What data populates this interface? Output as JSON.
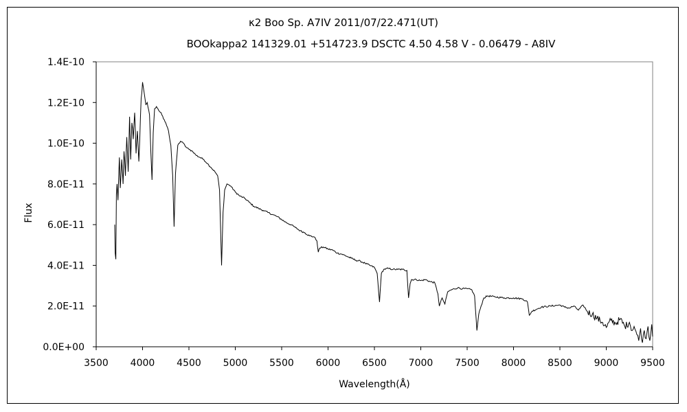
{
  "chart_data": {
    "type": "line",
    "title": "κ2 Boo    Sp. A7IV    2011/07/22.471(UT)",
    "subtitle": "BOOkappa2 141329.01 +514723.9 DSCTC 4.50 4.58 V - 0.06479 - A8IV",
    "xlabel": "Wavelength(Å)",
    "ylabel": "Flux",
    "xlim": [
      3500,
      9500
    ],
    "ylim": [
      0,
      1.4e-10
    ],
    "x_ticks": [
      3500,
      4000,
      4500,
      5000,
      5500,
      6000,
      6500,
      7000,
      7500,
      8000,
      8500,
      9000,
      9500
    ],
    "x_tick_labels": [
      "3500",
      "4000",
      "4500",
      "5000",
      "5500",
      "6000",
      "6500",
      "7000",
      "7500",
      "8000",
      "8500",
      "9000",
      "9500"
    ],
    "y_ticks": [
      0,
      2e-11,
      4e-11,
      6e-11,
      8e-11,
      1e-10,
      1.2e-10,
      1.4e-10
    ],
    "y_tick_labels": [
      "0.0E+00",
      "2.0E-11",
      "4.0E-11",
      "6.0E-11",
      "8.0E-11",
      "1.0E-10",
      "1.2E-10",
      "1.4E-10"
    ],
    "grid": false,
    "legend": "none",
    "series": [
      {
        "color": "#000000",
        "points": [
          [
            3700,
            6e-11
          ],
          [
            3705,
            4.6e-11
          ],
          [
            3712,
            4.3e-11
          ],
          [
            3718,
            7.5e-11
          ],
          [
            3725,
            8e-11
          ],
          [
            3735,
            7.2e-11
          ],
          [
            3750,
            9.3e-11
          ],
          [
            3760,
            7.8e-11
          ],
          [
            3775,
            9.2e-11
          ],
          [
            3790,
            8e-11
          ],
          [
            3800,
            9.6e-11
          ],
          [
            3815,
            8.4e-11
          ],
          [
            3830,
            1.03e-10
          ],
          [
            3845,
            8.6e-11
          ],
          [
            3860,
            1.13e-10
          ],
          [
            3872,
            9.2e-11
          ],
          [
            3885,
            1.1e-10
          ],
          [
            3900,
            1.02e-10
          ],
          [
            3915,
            1.15e-10
          ],
          [
            3930,
            9.5e-11
          ],
          [
            3945,
            1.06e-10
          ],
          [
            3960,
            9.1e-11
          ],
          [
            3970,
            1.02e-10
          ],
          [
            3985,
            1.22e-10
          ],
          [
            4000,
            1.3e-10
          ],
          [
            4010,
            1.27e-10
          ],
          [
            4020,
            1.24e-10
          ],
          [
            4035,
            1.19e-10
          ],
          [
            4050,
            1.2e-10
          ],
          [
            4075,
            1.14e-10
          ],
          [
            4090,
            9.5e-11
          ],
          [
            4102,
            8.2e-11
          ],
          [
            4115,
            1.05e-10
          ],
          [
            4130,
            1.17e-10
          ],
          [
            4150,
            1.18e-10
          ],
          [
            4175,
            1.16e-10
          ],
          [
            4200,
            1.15e-10
          ],
          [
            4225,
            1.12e-10
          ],
          [
            4250,
            1.1e-10
          ],
          [
            4280,
            1.06e-10
          ],
          [
            4305,
            9.9e-11
          ],
          [
            4325,
            8.4e-11
          ],
          [
            4340,
            5.9e-11
          ],
          [
            4355,
            8.5e-11
          ],
          [
            4380,
            9.9e-11
          ],
          [
            4410,
            1.01e-10
          ],
          [
            4440,
            1e-10
          ],
          [
            4470,
            9.8e-11
          ],
          [
            4500,
            9.7e-11
          ],
          [
            4540,
            9.6e-11
          ],
          [
            4580,
            9.4e-11
          ],
          [
            4620,
            9.3e-11
          ],
          [
            4660,
            9.2e-11
          ],
          [
            4700,
            9e-11
          ],
          [
            4740,
            8.8e-11
          ],
          [
            4780,
            8.6e-11
          ],
          [
            4810,
            8.4e-11
          ],
          [
            4830,
            7.7e-11
          ],
          [
            4852,
            4e-11
          ],
          [
            4868,
            6.6e-11
          ],
          [
            4885,
            7.7e-11
          ],
          [
            4910,
            8e-11
          ],
          [
            4950,
            7.9e-11
          ],
          [
            5000,
            7.6e-11
          ],
          [
            5050,
            7.4e-11
          ],
          [
            5100,
            7.3e-11
          ],
          [
            5150,
            7.1e-11
          ],
          [
            5200,
            6.9e-11
          ],
          [
            5250,
            6.8e-11
          ],
          [
            5300,
            6.7e-11
          ],
          [
            5350,
            6.6e-11
          ],
          [
            5400,
            6.5e-11
          ],
          [
            5450,
            6.4e-11
          ],
          [
            5500,
            6.25e-11
          ],
          [
            5550,
            6.1e-11
          ],
          [
            5600,
            6e-11
          ],
          [
            5650,
            5.85e-11
          ],
          [
            5700,
            5.7e-11
          ],
          [
            5750,
            5.6e-11
          ],
          [
            5800,
            5.45e-11
          ],
          [
            5850,
            5.4e-11
          ],
          [
            5880,
            5.2e-11
          ],
          [
            5895,
            4.65e-11
          ],
          [
            5910,
            4.85e-11
          ],
          [
            5950,
            4.9e-11
          ],
          [
            6000,
            4.8e-11
          ],
          [
            6050,
            4.75e-11
          ],
          [
            6100,
            4.6e-11
          ],
          [
            6150,
            4.55e-11
          ],
          [
            6200,
            4.45e-11
          ],
          [
            6250,
            4.35e-11
          ],
          [
            6300,
            4.25e-11
          ],
          [
            6350,
            4.2e-11
          ],
          [
            6400,
            4.1e-11
          ],
          [
            6450,
            4e-11
          ],
          [
            6500,
            3.9e-11
          ],
          [
            6530,
            3.6e-11
          ],
          [
            6555,
            2.2e-11
          ],
          [
            6575,
            3.6e-11
          ],
          [
            6600,
            3.8e-11
          ],
          [
            6650,
            3.85e-11
          ],
          [
            6700,
            3.8e-11
          ],
          [
            6750,
            3.8e-11
          ],
          [
            6800,
            3.8e-11
          ],
          [
            6850,
            3.75e-11
          ],
          [
            6868,
            2.4e-11
          ],
          [
            6885,
            3.1e-11
          ],
          [
            6900,
            3.3e-11
          ],
          [
            6950,
            3.3e-11
          ],
          [
            7000,
            3.25e-11
          ],
          [
            7050,
            3.3e-11
          ],
          [
            7100,
            3.2e-11
          ],
          [
            7150,
            3.15e-11
          ],
          [
            7185,
            2.6e-11
          ],
          [
            7200,
            2e-11
          ],
          [
            7230,
            2.4e-11
          ],
          [
            7260,
            2.1e-11
          ],
          [
            7290,
            2.7e-11
          ],
          [
            7330,
            2.8e-11
          ],
          [
            7400,
            2.9e-11
          ],
          [
            7450,
            2.85e-11
          ],
          [
            7500,
            2.85e-11
          ],
          [
            7550,
            2.8e-11
          ],
          [
            7580,
            2.5e-11
          ],
          [
            7605,
            8e-12
          ],
          [
            7625,
            1.6e-11
          ],
          [
            7650,
            2e-11
          ],
          [
            7680,
            2.4e-11
          ],
          [
            7720,
            2.5e-11
          ],
          [
            7800,
            2.45e-11
          ],
          [
            7900,
            2.4e-11
          ],
          [
            8000,
            2.4e-11
          ],
          [
            8100,
            2.35e-11
          ],
          [
            8150,
            2.2e-11
          ],
          [
            8170,
            1.55e-11
          ],
          [
            8200,
            1.75e-11
          ],
          [
            8250,
            1.85e-11
          ],
          [
            8300,
            1.95e-11
          ],
          [
            8400,
            2e-11
          ],
          [
            8500,
            2.05e-11
          ],
          [
            8550,
            1.95e-11
          ],
          [
            8600,
            1.9e-11
          ],
          [
            8650,
            2e-11
          ],
          [
            8700,
            1.8e-11
          ],
          [
            8750,
            2.05e-11
          ],
          [
            8800,
            1.7e-11
          ],
          [
            8850,
            1.6e-11
          ],
          [
            8900,
            1.4e-11
          ],
          [
            8960,
            1.2e-11
          ],
          [
            9000,
            9.5e-12
          ],
          [
            9050,
            1.3e-11
          ],
          [
            9100,
            1.15e-11
          ],
          [
            9150,
            1.35e-11
          ],
          [
            9200,
            1e-11
          ],
          [
            9250,
            1.2e-11
          ],
          [
            9280,
            8e-12
          ],
          [
            9300,
            1e-11
          ],
          [
            9330,
            6e-12
          ],
          [
            9350,
            3e-12
          ],
          [
            9370,
            9e-12
          ],
          [
            9390,
            2e-12
          ],
          [
            9410,
            8e-12
          ],
          [
            9430,
            4e-12
          ],
          [
            9450,
            1e-11
          ],
          [
            9470,
            3e-12
          ],
          [
            9490,
            1.1e-11
          ],
          [
            9500,
            5e-12
          ]
        ]
      }
    ]
  }
}
